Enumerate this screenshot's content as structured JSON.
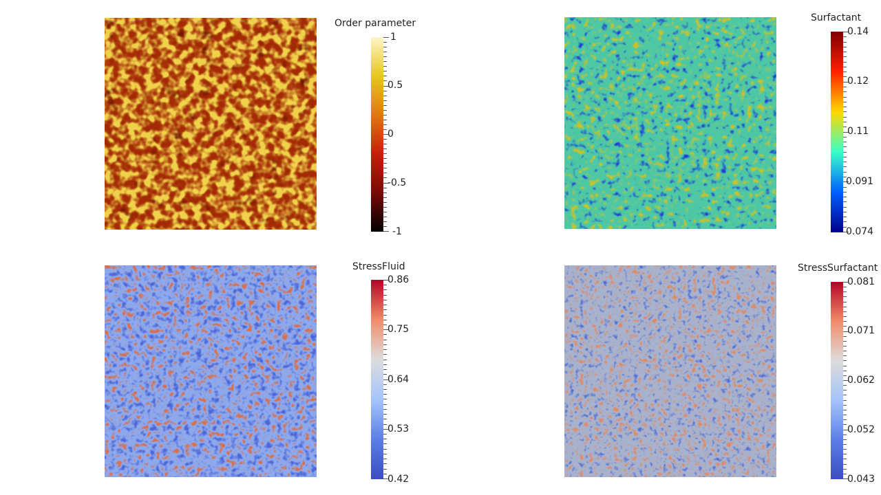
{
  "panels": [
    {
      "id": "order",
      "title": "Order parameter",
      "labels": [
        "1",
        "0.5",
        "0",
        "-0.5",
        "-1"
      ],
      "colormap": "black-body",
      "stops": [
        "#fff5c8",
        "#e6c81e",
        "#e07810",
        "#c81e0a",
        "#780a05",
        "#000000"
      ]
    },
    {
      "id": "surfactant",
      "title": "Surfactant",
      "labels": [
        "0.14",
        "0.12",
        "0.11",
        "0.091",
        "0.074"
      ],
      "colormap": "jet",
      "stops": [
        "#800000",
        "#ff2000",
        "#ffd800",
        "#38ffc8",
        "#0060ff",
        "#00008c"
      ]
    },
    {
      "id": "stressfluid",
      "title": "StressFluid",
      "labels": [
        "0.86",
        "0.75",
        "0.64",
        "0.53",
        "0.42"
      ],
      "colormap": "cool-to-warm",
      "stops": [
        "#b40426",
        "#f08c6a",
        "#dddcdc",
        "#a6c4fb",
        "#5b7fe6",
        "#3b4cc0"
      ]
    },
    {
      "id": "stresssurfactant",
      "title": "StressSurfactant",
      "labels": [
        "0.081",
        "0.071",
        "0.062",
        "0.052",
        "0.043"
      ],
      "colormap": "cool-to-warm",
      "stops": [
        "#b40426",
        "#f08c6a",
        "#dddcdc",
        "#a6c4fb",
        "#5b7fe6",
        "#3b4cc0"
      ]
    }
  ]
}
